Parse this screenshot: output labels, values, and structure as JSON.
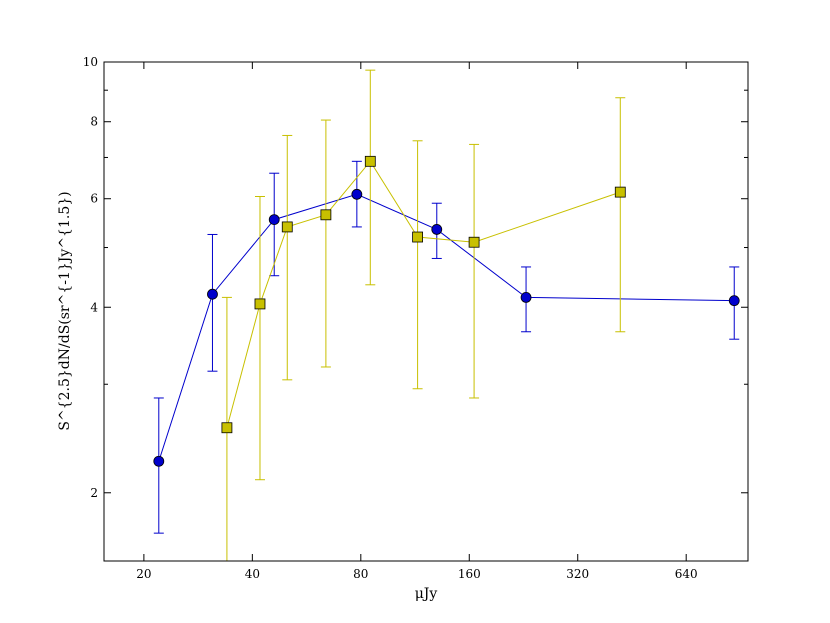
{
  "chart_data": {
    "type": "scatter",
    "xlabel": "μJy",
    "ylabel": "S^{2.5}dN/dS(sr^{-1}Jy^{1.5})",
    "x_scale": "log2",
    "y_scale": "log",
    "xlim": [
      15.5,
      950
    ],
    "ylim": [
      1.55,
      10
    ],
    "x_ticks": [
      20,
      40,
      80,
      160,
      320,
      640
    ],
    "x_tick_labels": [
      "20",
      "40",
      "80",
      "160",
      "320",
      "640"
    ],
    "y_ticks": [
      2,
      4,
      6,
      8,
      10
    ],
    "y_tick_labels": [
      "2",
      "4",
      "6",
      "8",
      "10"
    ],
    "grid": false,
    "series": [
      {
        "color": "#0000cc",
        "marker": "circle",
        "points": [
          {
            "x": 22,
            "y": 2.25,
            "err_lo": 1.72,
            "err_hi": 2.85
          },
          {
            "x": 31,
            "y": 4.2,
            "err_lo": 3.15,
            "err_hi": 5.25
          },
          {
            "x": 46,
            "y": 5.55,
            "err_lo": 4.5,
            "err_hi": 6.6
          },
          {
            "x": 78,
            "y": 6.1,
            "err_lo": 5.4,
            "err_hi": 6.9
          },
          {
            "x": 130,
            "y": 5.35,
            "err_lo": 4.8,
            "err_hi": 5.9
          },
          {
            "x": 230,
            "y": 4.15,
            "err_lo": 3.65,
            "err_hi": 4.65
          },
          {
            "x": 870,
            "y": 4.1,
            "err_lo": 3.55,
            "err_hi": 4.65
          }
        ]
      },
      {
        "color": "#c8c000",
        "marker": "square",
        "points": [
          {
            "x": 34,
            "y": 2.55,
            "err_lo": 1.55,
            "err_hi": 4.15
          },
          {
            "x": 42,
            "y": 4.05,
            "err_lo": 2.1,
            "err_hi": 6.05
          },
          {
            "x": 50,
            "y": 5.4,
            "err_lo": 3.05,
            "err_hi": 7.6
          },
          {
            "x": 64,
            "y": 5.65,
            "err_lo": 3.2,
            "err_hi": 8.05
          },
          {
            "x": 85,
            "y": 6.9,
            "err_lo": 4.35,
            "err_hi": 9.7
          },
          {
            "x": 115,
            "y": 5.2,
            "err_lo": 2.95,
            "err_hi": 7.45
          },
          {
            "x": 165,
            "y": 5.1,
            "err_lo": 2.85,
            "err_hi": 7.35
          },
          {
            "x": 420,
            "y": 6.15,
            "err_lo": 3.65,
            "err_hi": 8.75
          }
        ]
      }
    ]
  }
}
